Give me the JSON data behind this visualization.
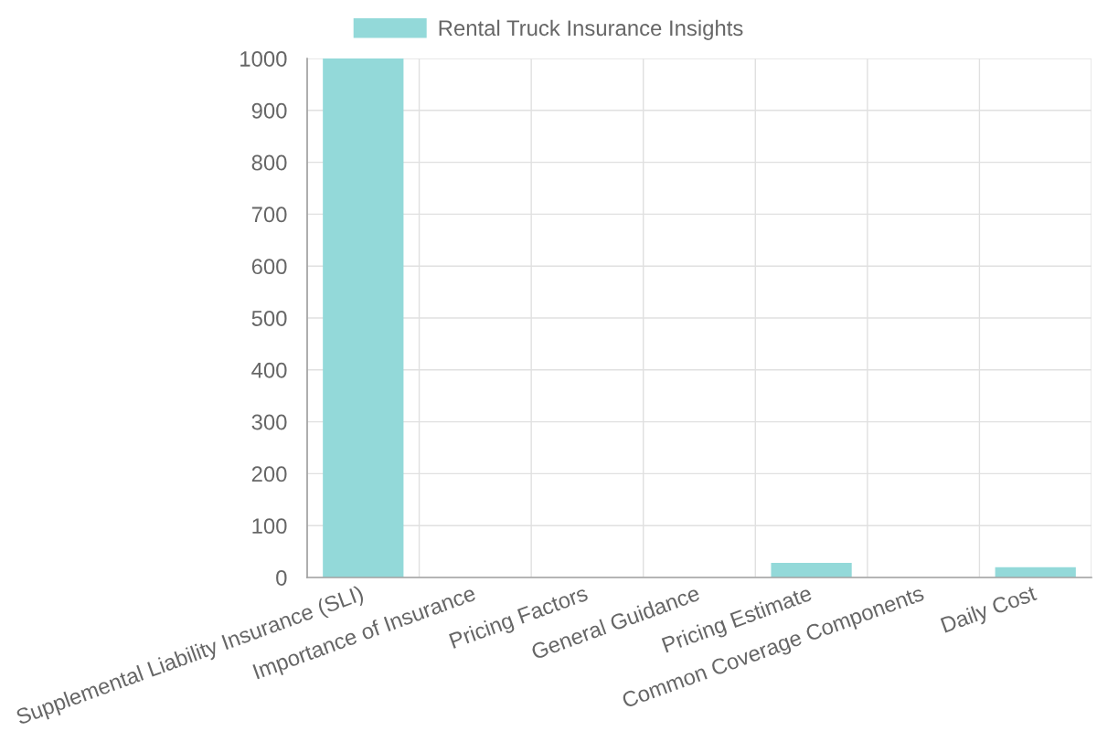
{
  "chart_data": {
    "type": "bar",
    "categories": [
      "Supplemental Liability Insurance (SLI)",
      "Importance of Insurance",
      "Pricing Factors",
      "General Guidance",
      "Pricing Estimate",
      "Common Coverage Components",
      "Daily Cost"
    ],
    "series": [
      {
        "name": "Rental Truck Insurance Insights",
        "color": "#93d9d9",
        "values": [
          1000,
          0,
          0,
          0,
          28,
          0,
          20
        ]
      }
    ],
    "ylim": [
      0,
      1000
    ],
    "yticks": [
      0,
      100,
      200,
      300,
      400,
      500,
      600,
      700,
      800,
      900,
      1000
    ],
    "grid": true,
    "legend": "top"
  }
}
